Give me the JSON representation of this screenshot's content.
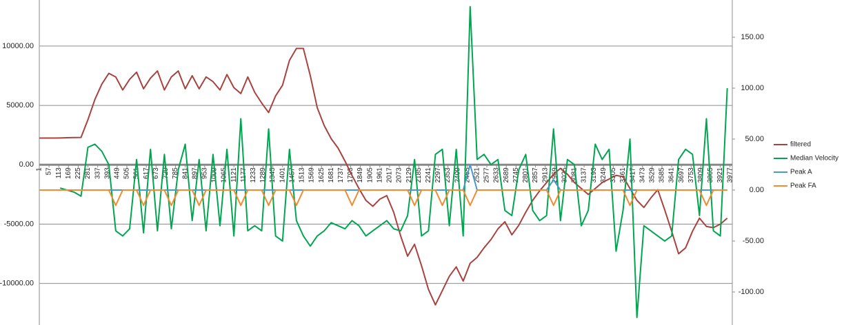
{
  "chart_data": {
    "type": "line",
    "legend": "right",
    "grid": true,
    "x": [
      1,
      41,
      81,
      121,
      161,
      201,
      241,
      281,
      321,
      361,
      401,
      441,
      481,
      521,
      561,
      601,
      641,
      681,
      721,
      761,
      801,
      841,
      881,
      921,
      961,
      1001,
      1041,
      1081,
      1121,
      1161,
      1201,
      1241,
      1281,
      1321,
      1361,
      1401,
      1441,
      1481,
      1521,
      1561,
      1601,
      1641,
      1681,
      1721,
      1761,
      1801,
      1841,
      1881,
      1921,
      1961,
      2001,
      2041,
      2081,
      2121,
      2161,
      2201,
      2241,
      2281,
      2321,
      2361,
      2401,
      2441,
      2481,
      2521,
      2561,
      2601,
      2641,
      2681,
      2721,
      2761,
      2801,
      2841,
      2881,
      2921,
      2961,
      3001,
      3041,
      3081,
      3121,
      3161,
      3201,
      3241,
      3281,
      3321,
      3361,
      3401,
      3441,
      3481,
      3521,
      3561,
      3601,
      3641,
      3681,
      3721,
      3761,
      3801,
      3841,
      3881,
      3921,
      3961
    ],
    "xlim": [
      1,
      3990
    ],
    "xticks": [
      1,
      57,
      113,
      169,
      225,
      281,
      337,
      393,
      449,
      505,
      561,
      617,
      673,
      729,
      785,
      841,
      897,
      953,
      1009,
      1065,
      1121,
      1177,
      1233,
      1289,
      1345,
      1401,
      1457,
      1513,
      1569,
      1625,
      1681,
      1737,
      1793,
      1849,
      1905,
      1961,
      2017,
      2073,
      2129,
      2185,
      2241,
      2297,
      2353,
      2409,
      2465,
      2521,
      2577,
      2633,
      2689,
      2745,
      2801,
      2857,
      2913,
      2969,
      3025,
      3081,
      3137,
      3193,
      3249,
      3305,
      3361,
      3417,
      3473,
      3529,
      3585,
      3641,
      3697,
      3753,
      3809,
      3865,
      3921,
      3977
    ],
    "ylim": [
      -13500,
      13880
    ],
    "yticks": [
      {
        "value": -10000,
        "label": "-10000.00"
      },
      {
        "value": -5000,
        "label": "-5000.00"
      },
      {
        "value": 0,
        "label": "0.00"
      },
      {
        "value": 5000,
        "label": "5000.00"
      },
      {
        "value": 10000,
        "label": "10000.00"
      }
    ],
    "y2lim": [
      -132.4,
      186.5
    ],
    "y2ticks": [
      {
        "value": -100,
        "label": "-100.00"
      },
      {
        "value": -50,
        "label": "-50.00"
      },
      {
        "value": 0,
        "label": "0.00"
      },
      {
        "value": 50,
        "label": "50.00"
      },
      {
        "value": 100,
        "label": "100.00"
      },
      {
        "value": 150,
        "label": "150.00"
      }
    ],
    "series": [
      {
        "name": "filtered",
        "color": "#a8423f",
        "values": [
          2250,
          2250,
          2250,
          2260,
          2280,
          2290,
          2300,
          3800,
          5500,
          6800,
          7700,
          7400,
          6300,
          7200,
          7800,
          6400,
          7300,
          7900,
          6300,
          7400,
          7900,
          6400,
          7500,
          6400,
          7400,
          7000,
          6300,
          7600,
          6500,
          6000,
          7400,
          6100,
          5200,
          4400,
          5800,
          6700,
          8800,
          9800,
          9800,
          7500,
          4800,
          3300,
          2200,
          1400,
          300,
          -900,
          -2000,
          -3000,
          -3500,
          -2900,
          -2600,
          -4000,
          -6000,
          -7700,
          -6700,
          -8500,
          -10500,
          -11800,
          -10600,
          -9400,
          -8600,
          -9800,
          -8300,
          -7800,
          -7000,
          -6300,
          -5400,
          -4800,
          -5900,
          -5100,
          -4000,
          -3000,
          -2200,
          -1500,
          -800,
          -300,
          -800,
          -1500,
          -2000,
          -2500,
          -2000,
          -1500,
          -1200,
          -900,
          -1000,
          -2000,
          -3000,
          -3600,
          -2800,
          -2100,
          -3800,
          -5600,
          -7500,
          -7000,
          -5600,
          -4500,
          -5200,
          -5300,
          -5000,
          -4500
        ]
      },
      {
        "name": "Median Velocity",
        "color": "#00a550",
        "axis": "y2",
        "values": [
          null,
          null,
          null,
          2,
          0,
          -2,
          -6,
          42,
          45,
          38,
          25,
          -40,
          -45,
          -38,
          30,
          -42,
          40,
          -40,
          35,
          -38,
          20,
          45,
          -30,
          30,
          -40,
          35,
          -35,
          40,
          -45,
          70,
          -40,
          -35,
          -40,
          60,
          -45,
          -50,
          40,
          -30,
          -45,
          -55,
          -45,
          -40,
          -32,
          -35,
          -38,
          -30,
          -35,
          -45,
          -40,
          -35,
          -30,
          -38,
          -40,
          -25,
          30,
          -45,
          -40,
          35,
          40,
          -35,
          40,
          -45,
          180,
          30,
          35,
          25,
          30,
          -20,
          -25,
          20,
          35,
          -20,
          -30,
          -25,
          60,
          -30,
          30,
          25,
          -35,
          -20,
          45,
          30,
          40,
          -60,
          -20,
          50,
          -125,
          -35,
          -40,
          -45,
          -50,
          -45,
          30,
          40,
          35,
          -25,
          70,
          -40,
          -45,
          100
        ]
      },
      {
        "name": "Peak A",
        "color": "#4a98c9",
        "axis": "y2",
        "values": [
          0,
          0,
          0,
          0,
          0,
          0,
          0,
          0,
          0,
          0,
          0,
          0,
          0,
          0,
          0,
          0,
          0,
          0,
          0,
          0,
          0,
          0,
          0,
          0,
          0,
          0,
          0,
          0,
          0,
          0,
          0,
          0,
          0,
          0,
          0,
          0,
          0,
          0,
          0,
          0,
          0,
          0,
          0,
          0,
          0,
          0,
          0,
          0,
          0,
          0,
          0,
          0,
          0,
          0,
          0,
          0,
          0,
          0,
          0,
          0,
          0,
          0,
          25,
          0,
          0,
          0,
          0,
          0,
          0,
          0,
          0,
          0,
          0,
          0,
          10,
          0,
          0,
          0,
          0,
          0,
          0,
          0,
          0,
          0,
          0,
          0,
          0,
          0,
          0,
          0,
          0,
          0,
          0,
          0,
          0,
          0,
          0,
          0,
          0,
          0
        ]
      },
      {
        "name": "Peak FA",
        "color": "#f28a30",
        "axis": "y2",
        "values": [
          0,
          0,
          0,
          0,
          0,
          0,
          0,
          0,
          0,
          0,
          0,
          -15,
          0,
          0,
          0,
          -15,
          0,
          0,
          0,
          -15,
          0,
          0,
          0,
          -15,
          0,
          0,
          0,
          0,
          0,
          -15,
          0,
          0,
          0,
          -15,
          0,
          0,
          0,
          -15,
          0,
          0,
          0,
          0,
          0,
          0,
          0,
          -15,
          0,
          0,
          0,
          0,
          0,
          0,
          0,
          0,
          -15,
          0,
          0,
          0,
          -15,
          0,
          0,
          0,
          -15,
          0,
          0,
          0,
          0,
          0,
          0,
          0,
          0,
          0,
          0,
          0,
          -15,
          0,
          0,
          0,
          0,
          0,
          0,
          0,
          0,
          0,
          0,
          -15,
          0,
          0,
          0,
          0,
          0,
          0,
          0,
          0,
          0,
          0,
          -15,
          0,
          0,
          0
        ]
      }
    ]
  }
}
